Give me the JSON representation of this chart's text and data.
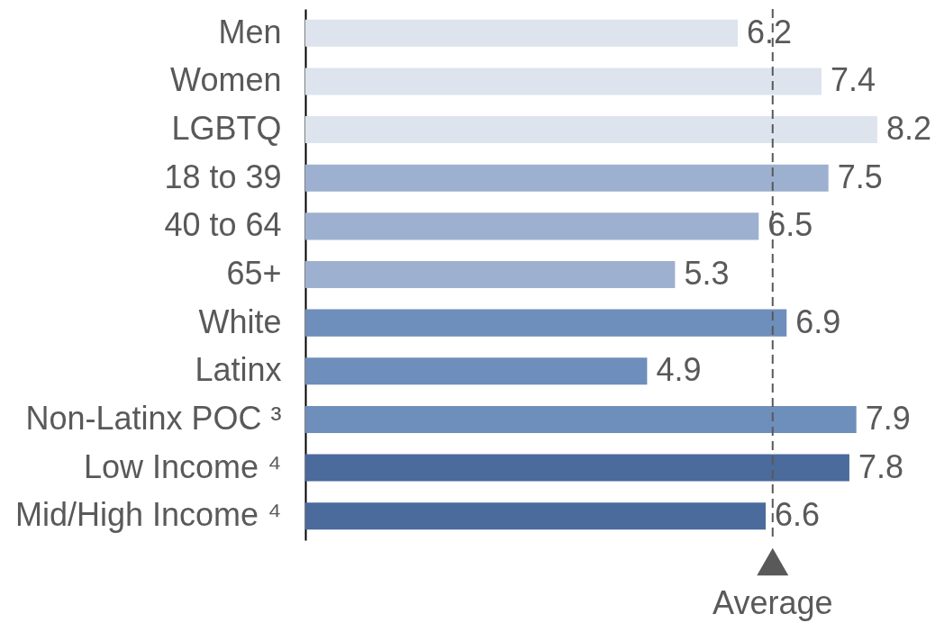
{
  "chart_data": {
    "type": "bar",
    "orientation": "horizontal",
    "categories": [
      "Men",
      "Women",
      "LGBTQ",
      "18 to 39",
      "40 to 64",
      "65+",
      "White",
      "Latinx",
      "Non-Latinx POC ³",
      "Low Income ⁴",
      "Mid/High Income ⁴"
    ],
    "values": [
      6.2,
      7.4,
      8.2,
      7.5,
      6.5,
      5.3,
      6.9,
      4.9,
      7.9,
      7.8,
      6.6
    ],
    "colors": [
      "#dee4ee",
      "#dee4ee",
      "#dee4ee",
      "#9db0cf",
      "#9db0cf",
      "#9db0cf",
      "#6e8ebb",
      "#6e8ebb",
      "#6e8ebb",
      "#4a6b9b",
      "#4a6b9b"
    ],
    "data_labels": true,
    "tick_labels": "y",
    "ref_lines": [
      {
        "axis": "x",
        "value": 6.7,
        "label": "Average",
        "color": "#595959",
        "line_style": "dashed"
      }
    ]
  }
}
